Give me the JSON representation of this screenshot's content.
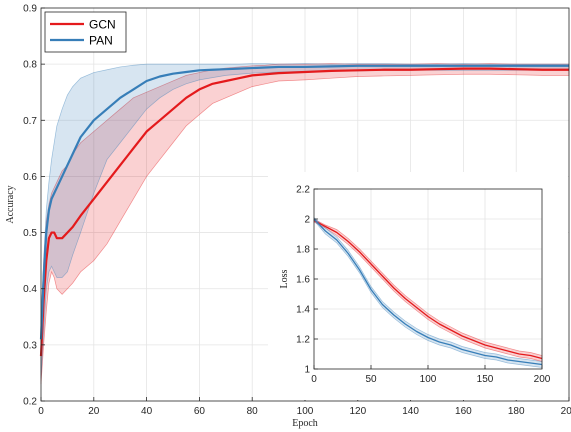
{
  "chart_data": [
    {
      "type": "line",
      "xlabel": "Epoch",
      "ylabel": "Accuracy",
      "xlim": [
        0,
        200
      ],
      "ylim": [
        0.2,
        0.9
      ],
      "xticks": [
        0,
        20,
        40,
        60,
        80,
        100,
        120,
        140,
        160,
        180,
        200
      ],
      "yticks": [
        0.2,
        0.3,
        0.4,
        0.5,
        0.6,
        0.7,
        0.8,
        0.9
      ],
      "xtick_labels": [
        "0",
        "20",
        "40",
        "60",
        "80",
        "100",
        "120",
        "140",
        "160",
        "180",
        "200"
      ],
      "ytick_labels": [
        "0.2",
        "0.3",
        "0.4",
        "0.5",
        "0.6",
        "0.7",
        "0.8",
        "0.9"
      ],
      "grid": true,
      "legend": "top-left",
      "series": [
        {
          "name": "GCN",
          "color": "#e41a1c",
          "shaded_band": true,
          "x": [
            0,
            1,
            2,
            3,
            4,
            5,
            6,
            8,
            10,
            12,
            15,
            20,
            25,
            30,
            35,
            40,
            45,
            50,
            55,
            60,
            65,
            70,
            75,
            80,
            85,
            90,
            100,
            110,
            120,
            130,
            140,
            150,
            160,
            170,
            180,
            190,
            200
          ],
          "mean": [
            0.28,
            0.38,
            0.45,
            0.49,
            0.5,
            0.5,
            0.49,
            0.49,
            0.5,
            0.51,
            0.53,
            0.56,
            0.59,
            0.62,
            0.65,
            0.68,
            0.7,
            0.72,
            0.74,
            0.755,
            0.765,
            0.77,
            0.775,
            0.78,
            0.782,
            0.784,
            0.786,
            0.788,
            0.789,
            0.79,
            0.79,
            0.791,
            0.792,
            0.792,
            0.791,
            0.79,
            0.79
          ],
          "upper": [
            0.33,
            0.45,
            0.52,
            0.55,
            0.57,
            0.58,
            0.59,
            0.61,
            0.62,
            0.64,
            0.66,
            0.68,
            0.7,
            0.72,
            0.74,
            0.75,
            0.76,
            0.77,
            0.78,
            0.785,
            0.79,
            0.793,
            0.795,
            0.797,
            0.798,
            0.8,
            0.8,
            0.801,
            0.8,
            0.8,
            0.8,
            0.801,
            0.8,
            0.801,
            0.8,
            0.8,
            0.8
          ],
          "lower": [
            0.23,
            0.3,
            0.36,
            0.41,
            0.43,
            0.42,
            0.4,
            0.39,
            0.4,
            0.41,
            0.43,
            0.45,
            0.48,
            0.52,
            0.56,
            0.6,
            0.63,
            0.66,
            0.69,
            0.71,
            0.73,
            0.74,
            0.75,
            0.76,
            0.765,
            0.77,
            0.772,
            0.775,
            0.778,
            0.779,
            0.78,
            0.781,
            0.782,
            0.782,
            0.781,
            0.78,
            0.78
          ]
        },
        {
          "name": "PAN",
          "color": "#377eb8",
          "shaded_band": true,
          "x": [
            0,
            1,
            2,
            3,
            4,
            5,
            6,
            8,
            10,
            12,
            15,
            20,
            25,
            30,
            35,
            40,
            45,
            50,
            55,
            60,
            65,
            70,
            75,
            80,
            85,
            90,
            100,
            110,
            120,
            130,
            140,
            150,
            160,
            170,
            180,
            190,
            200
          ],
          "mean": [
            0.31,
            0.42,
            0.5,
            0.54,
            0.56,
            0.57,
            0.58,
            0.6,
            0.62,
            0.64,
            0.67,
            0.7,
            0.72,
            0.74,
            0.755,
            0.77,
            0.778,
            0.783,
            0.786,
            0.789,
            0.79,
            0.791,
            0.792,
            0.793,
            0.794,
            0.795,
            0.795,
            0.796,
            0.797,
            0.797,
            0.797,
            0.797,
            0.797,
            0.797,
            0.797,
            0.797,
            0.797
          ],
          "upper": [
            0.33,
            0.45,
            0.54,
            0.59,
            0.63,
            0.66,
            0.69,
            0.72,
            0.745,
            0.76,
            0.775,
            0.785,
            0.79,
            0.795,
            0.798,
            0.8,
            0.8,
            0.8,
            0.8,
            0.8,
            0.8,
            0.8,
            0.8,
            0.801,
            0.801,
            0.8,
            0.801,
            0.8,
            0.801,
            0.801,
            0.8,
            0.8,
            0.801,
            0.8,
            0.8,
            0.8,
            0.8
          ],
          "lower": [
            0.24,
            0.32,
            0.4,
            0.43,
            0.44,
            0.43,
            0.42,
            0.42,
            0.43,
            0.46,
            0.5,
            0.57,
            0.63,
            0.66,
            0.69,
            0.72,
            0.74,
            0.755,
            0.765,
            0.772,
            0.776,
            0.78,
            0.782,
            0.784,
            0.785,
            0.786,
            0.787,
            0.788,
            0.788,
            0.789,
            0.789,
            0.789,
            0.789,
            0.789,
            0.789,
            0.789,
            0.789
          ]
        }
      ]
    },
    {
      "type": "line",
      "inset": true,
      "xlabel": "",
      "ylabel": "Loss",
      "xlim": [
        0,
        200
      ],
      "ylim": [
        1,
        2.2
      ],
      "xticks": [
        0,
        50,
        100,
        150,
        200
      ],
      "yticks": [
        1,
        1.2,
        1.4,
        1.6,
        1.8,
        2,
        2.2
      ],
      "xtick_labels": [
        "0",
        "50",
        "100",
        "150",
        "200"
      ],
      "ytick_labels": [
        "1",
        "1.2",
        "1.4",
        "1.6",
        "1.8",
        "2",
        "2.2"
      ],
      "grid": true,
      "series": [
        {
          "name": "GCN",
          "color": "#e41a1c",
          "x": [
            0,
            10,
            20,
            30,
            40,
            50,
            60,
            70,
            80,
            90,
            100,
            110,
            120,
            130,
            140,
            150,
            160,
            170,
            180,
            190,
            200
          ],
          "mean": [
            1.99,
            1.95,
            1.91,
            1.85,
            1.78,
            1.7,
            1.62,
            1.54,
            1.47,
            1.41,
            1.35,
            1.3,
            1.26,
            1.22,
            1.19,
            1.16,
            1.14,
            1.12,
            1.1,
            1.09,
            1.07
          ],
          "upper": [
            2.0,
            1.96,
            1.93,
            1.87,
            1.8,
            1.72,
            1.64,
            1.56,
            1.49,
            1.43,
            1.37,
            1.32,
            1.28,
            1.24,
            1.21,
            1.18,
            1.16,
            1.14,
            1.12,
            1.11,
            1.09
          ],
          "lower": [
            1.98,
            1.94,
            1.89,
            1.83,
            1.76,
            1.68,
            1.6,
            1.52,
            1.45,
            1.39,
            1.33,
            1.28,
            1.24,
            1.2,
            1.17,
            1.14,
            1.12,
            1.1,
            1.08,
            1.07,
            1.05
          ]
        },
        {
          "name": "PAN",
          "color": "#377eb8",
          "x": [
            0,
            10,
            20,
            30,
            40,
            50,
            60,
            70,
            80,
            90,
            100,
            110,
            120,
            130,
            140,
            150,
            160,
            170,
            180,
            190,
            200
          ],
          "mean": [
            2.0,
            1.92,
            1.86,
            1.77,
            1.66,
            1.53,
            1.43,
            1.36,
            1.3,
            1.25,
            1.21,
            1.18,
            1.16,
            1.13,
            1.11,
            1.09,
            1.08,
            1.06,
            1.05,
            1.04,
            1.03
          ],
          "upper": [
            2.01,
            1.94,
            1.88,
            1.79,
            1.68,
            1.55,
            1.45,
            1.38,
            1.32,
            1.27,
            1.23,
            1.2,
            1.18,
            1.15,
            1.13,
            1.11,
            1.1,
            1.08,
            1.07,
            1.06,
            1.05
          ],
          "lower": [
            1.99,
            1.9,
            1.84,
            1.75,
            1.64,
            1.51,
            1.41,
            1.34,
            1.28,
            1.23,
            1.19,
            1.16,
            1.14,
            1.11,
            1.09,
            1.07,
            1.06,
            1.04,
            1.03,
            1.02,
            1.01
          ]
        }
      ]
    }
  ]
}
